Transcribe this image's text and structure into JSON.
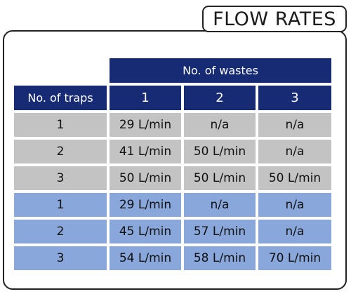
{
  "title": "FLOW RATES",
  "table": {
    "super_header": "No. of wastes",
    "row_header": "No. of traps",
    "columns": [
      "1",
      "2",
      "3"
    ],
    "colors": {
      "header": "#172a74",
      "group_a": "#c3c3c3",
      "group_b": "#89a7da"
    },
    "rows": [
      {
        "group": "a",
        "traps": "1",
        "values": [
          "29 L/min",
          "n/a",
          "n/a"
        ]
      },
      {
        "group": "a",
        "traps": "2",
        "values": [
          "41 L/min",
          "50 L/min",
          "n/a"
        ]
      },
      {
        "group": "a",
        "traps": "3",
        "values": [
          "50 L/min",
          "50 L/min",
          "50 L/min"
        ]
      },
      {
        "group": "b",
        "traps": "1",
        "values": [
          "29 L/min",
          "n/a",
          "n/a"
        ]
      },
      {
        "group": "b",
        "traps": "2",
        "values": [
          "45 L/min",
          "57 L/min",
          "n/a"
        ]
      },
      {
        "group": "b",
        "traps": "3",
        "values": [
          "54 L/min",
          "58 L/min",
          "70 L/min"
        ]
      }
    ]
  }
}
